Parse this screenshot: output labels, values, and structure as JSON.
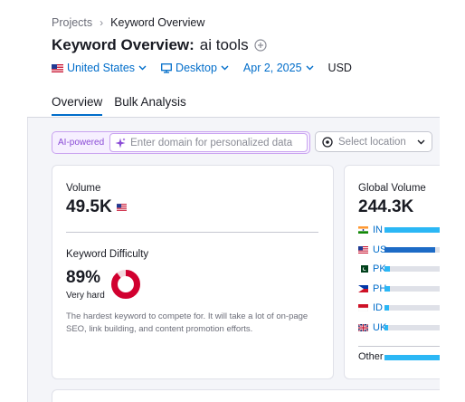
{
  "breadcrumb": {
    "root": "Projects",
    "current": "Keyword Overview"
  },
  "header": {
    "title": "Keyword Overview:",
    "keyword": "ai tools"
  },
  "filters": {
    "country": "United States",
    "device": "Desktop",
    "date": "Apr 2, 2025",
    "currency": "USD"
  },
  "tabs": [
    {
      "label": "Overview",
      "active": true
    },
    {
      "label": "Bulk Analysis",
      "active": false
    }
  ],
  "ai_bar": {
    "badge": "AI-powered",
    "placeholder": "Enter domain for personalized data"
  },
  "location": {
    "placeholder": "Select location"
  },
  "volume": {
    "label": "Volume",
    "value": "49.5K"
  },
  "difficulty": {
    "label": "Keyword Difficulty",
    "value": "89%",
    "percent": 89,
    "level": "Very hard",
    "description": "The hardest keyword to compete for. It will take a lot of on-page SEO, link building, and content promotion efforts.",
    "color": "#d1002f"
  },
  "global_volume": {
    "label": "Global Volume",
    "value": "244.3K",
    "countries": [
      {
        "code": "IN",
        "flag": "flag-in-icon",
        "share": 1.0,
        "color": "#2bb7f5"
      },
      {
        "code": "US",
        "flag": "flag-us-icon",
        "share": 0.7,
        "color": "#1d6bc6"
      },
      {
        "code": "PK",
        "flag": "flag-pk-icon",
        "share": 0.08,
        "color": "#2bb7f5"
      },
      {
        "code": "PH",
        "flag": "flag-ph-icon",
        "share": 0.07,
        "color": "#2bb7f5"
      },
      {
        "code": "ID",
        "flag": "flag-id-icon",
        "share": 0.06,
        "color": "#2bb7f5"
      },
      {
        "code": "UK",
        "flag": "flag-uk-icon",
        "share": 0.05,
        "color": "#2bb7f5"
      }
    ],
    "other": {
      "label": "Other",
      "share": 1.0,
      "color": "#2bb7f5"
    }
  }
}
